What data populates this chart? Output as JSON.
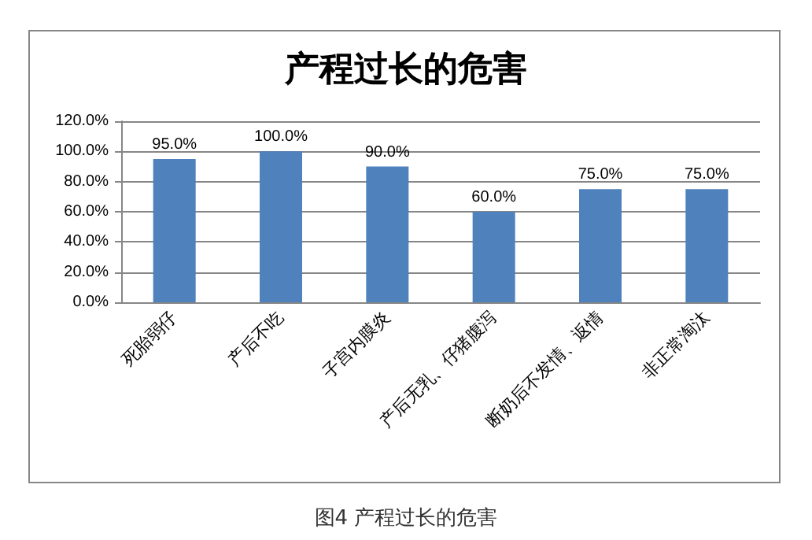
{
  "chart_data": {
    "type": "bar",
    "title": "产程过长的危害",
    "categories": [
      "死胎弱仔",
      "产后不吃",
      "子宫内膜炎",
      "产后无乳、仔猪腹泻",
      "断奶后不发情、返情",
      "非正常淘汰"
    ],
    "values": [
      95,
      100,
      90,
      60,
      75,
      75
    ],
    "color": "#4f81bd",
    "value_labels": [
      "95.0%",
      "100.0%",
      "90.0%",
      "60.0%",
      "75.0%",
      "75.0%"
    ],
    "ylim": [
      0,
      120
    ],
    "yticks": [
      {
        "value": 0,
        "label": "0.0%"
      },
      {
        "value": 20,
        "label": "20.0%"
      },
      {
        "value": 40,
        "label": "40.0%"
      },
      {
        "value": 60,
        "label": "60.0%"
      },
      {
        "value": 80,
        "label": "80.0%"
      },
      {
        "value": 100,
        "label": "100.0%"
      },
      {
        "value": 120,
        "label": "120.0%"
      }
    ],
    "grid": "y",
    "annotations": [
      "图4 产程过长的危害"
    ]
  }
}
